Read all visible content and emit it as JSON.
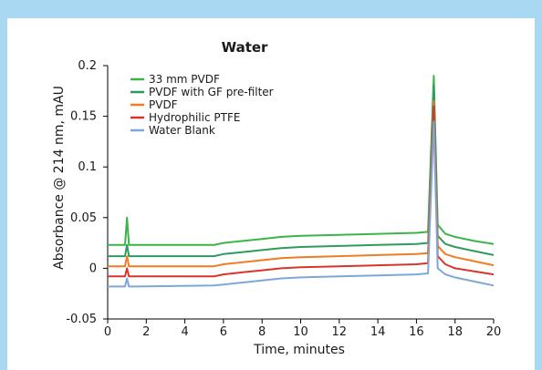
{
  "chart_data": {
    "type": "line",
    "title": "Water",
    "xlabel": "Time, minutes",
    "ylabel": "Absorbance @ 214 nm, mAU",
    "xlim": [
      0,
      20
    ],
    "ylim": [
      -0.05,
      0.2
    ],
    "x_ticks": [
      "0",
      "2",
      "4",
      "6",
      "8",
      "10",
      "12",
      "14",
      "16",
      "18",
      "20"
    ],
    "y_ticks": [
      "0.2",
      "0.15",
      "0.1",
      "0.05",
      "0",
      "-0.05"
    ],
    "grid": false,
    "legend_position": "top-left",
    "series": [
      {
        "name": "33 mm PVDF",
        "color": "#3cb44b",
        "points": [
          [
            0,
            0.023
          ],
          [
            0.9,
            0.023
          ],
          [
            1.0,
            0.05
          ],
          [
            1.1,
            0.023
          ],
          [
            1.5,
            0.023
          ],
          [
            5.5,
            0.023
          ],
          [
            6.0,
            0.025
          ],
          [
            7,
            0.027
          ],
          [
            8,
            0.029
          ],
          [
            9,
            0.031
          ],
          [
            10,
            0.032
          ],
          [
            12,
            0.033
          ],
          [
            14,
            0.034
          ],
          [
            16,
            0.035
          ],
          [
            16.6,
            0.036
          ],
          [
            16.9,
            0.19
          ],
          [
            17.1,
            0.043
          ],
          [
            17.5,
            0.034
          ],
          [
            18,
            0.031
          ],
          [
            19,
            0.027
          ],
          [
            20,
            0.024
          ]
        ]
      },
      {
        "name": "PVDF with GF pre-filter",
        "color": "#2e9b5e",
        "points": [
          [
            0,
            0.012
          ],
          [
            0.9,
            0.012
          ],
          [
            1.0,
            0.023
          ],
          [
            1.1,
            0.012
          ],
          [
            1.5,
            0.012
          ],
          [
            5.5,
            0.012
          ],
          [
            6.0,
            0.014
          ],
          [
            7,
            0.016
          ],
          [
            8,
            0.018
          ],
          [
            9,
            0.02
          ],
          [
            10,
            0.021
          ],
          [
            12,
            0.022
          ],
          [
            14,
            0.023
          ],
          [
            16,
            0.024
          ],
          [
            16.6,
            0.025
          ],
          [
            16.9,
            0.18
          ],
          [
            17.1,
            0.032
          ],
          [
            17.5,
            0.024
          ],
          [
            18,
            0.021
          ],
          [
            19,
            0.017
          ],
          [
            20,
            0.013
          ]
        ]
      },
      {
        "name": "PVDF",
        "color": "#f07d22",
        "points": [
          [
            0,
            0.002
          ],
          [
            0.9,
            0.002
          ],
          [
            1.0,
            0.012
          ],
          [
            1.1,
            0.002
          ],
          [
            1.5,
            0.002
          ],
          [
            5.5,
            0.002
          ],
          [
            6.0,
            0.004
          ],
          [
            7,
            0.006
          ],
          [
            8,
            0.008
          ],
          [
            9,
            0.01
          ],
          [
            10,
            0.011
          ],
          [
            12,
            0.012
          ],
          [
            14,
            0.013
          ],
          [
            16,
            0.014
          ],
          [
            16.6,
            0.015
          ],
          [
            16.9,
            0.165
          ],
          [
            17.1,
            0.022
          ],
          [
            17.5,
            0.014
          ],
          [
            18,
            0.011
          ],
          [
            19,
            0.007
          ],
          [
            20,
            0.003
          ]
        ]
      },
      {
        "name": "Hydrophilic PTFE",
        "color": "#d9342b",
        "points": [
          [
            0,
            -0.008
          ],
          [
            0.9,
            -0.008
          ],
          [
            1.0,
            0.0
          ],
          [
            1.1,
            -0.008
          ],
          [
            1.5,
            -0.008
          ],
          [
            5.5,
            -0.008
          ],
          [
            6.0,
            -0.006
          ],
          [
            7,
            -0.004
          ],
          [
            8,
            -0.002
          ],
          [
            9,
            0.0
          ],
          [
            10,
            0.001
          ],
          [
            12,
            0.002
          ],
          [
            14,
            0.003
          ],
          [
            16,
            0.004
          ],
          [
            16.6,
            0.005
          ],
          [
            16.9,
            0.16
          ],
          [
            17.1,
            0.012
          ],
          [
            17.5,
            0.004
          ],
          [
            18,
            0.0
          ],
          [
            19,
            -0.003
          ],
          [
            20,
            -0.006
          ]
        ]
      },
      {
        "name": "Water Blank",
        "color": "#7ba7d9",
        "points": [
          [
            0,
            -0.018
          ],
          [
            0.9,
            -0.018
          ],
          [
            1.0,
            -0.01
          ],
          [
            1.1,
            -0.018
          ],
          [
            1.5,
            -0.018
          ],
          [
            5.5,
            -0.017
          ],
          [
            6.0,
            -0.016
          ],
          [
            7,
            -0.014
          ],
          [
            8,
            -0.012
          ],
          [
            9,
            -0.01
          ],
          [
            10,
            -0.009
          ],
          [
            12,
            -0.008
          ],
          [
            14,
            -0.007
          ],
          [
            16,
            -0.006
          ],
          [
            16.6,
            -0.005
          ],
          [
            16.9,
            0.145
          ],
          [
            17.1,
            0.0
          ],
          [
            17.5,
            -0.006
          ],
          [
            18,
            -0.009
          ],
          [
            19,
            -0.013
          ],
          [
            20,
            -0.017
          ]
        ]
      }
    ]
  },
  "colors": {
    "border_background": "#a9d9f2",
    "panel_background": "#ffffff"
  }
}
